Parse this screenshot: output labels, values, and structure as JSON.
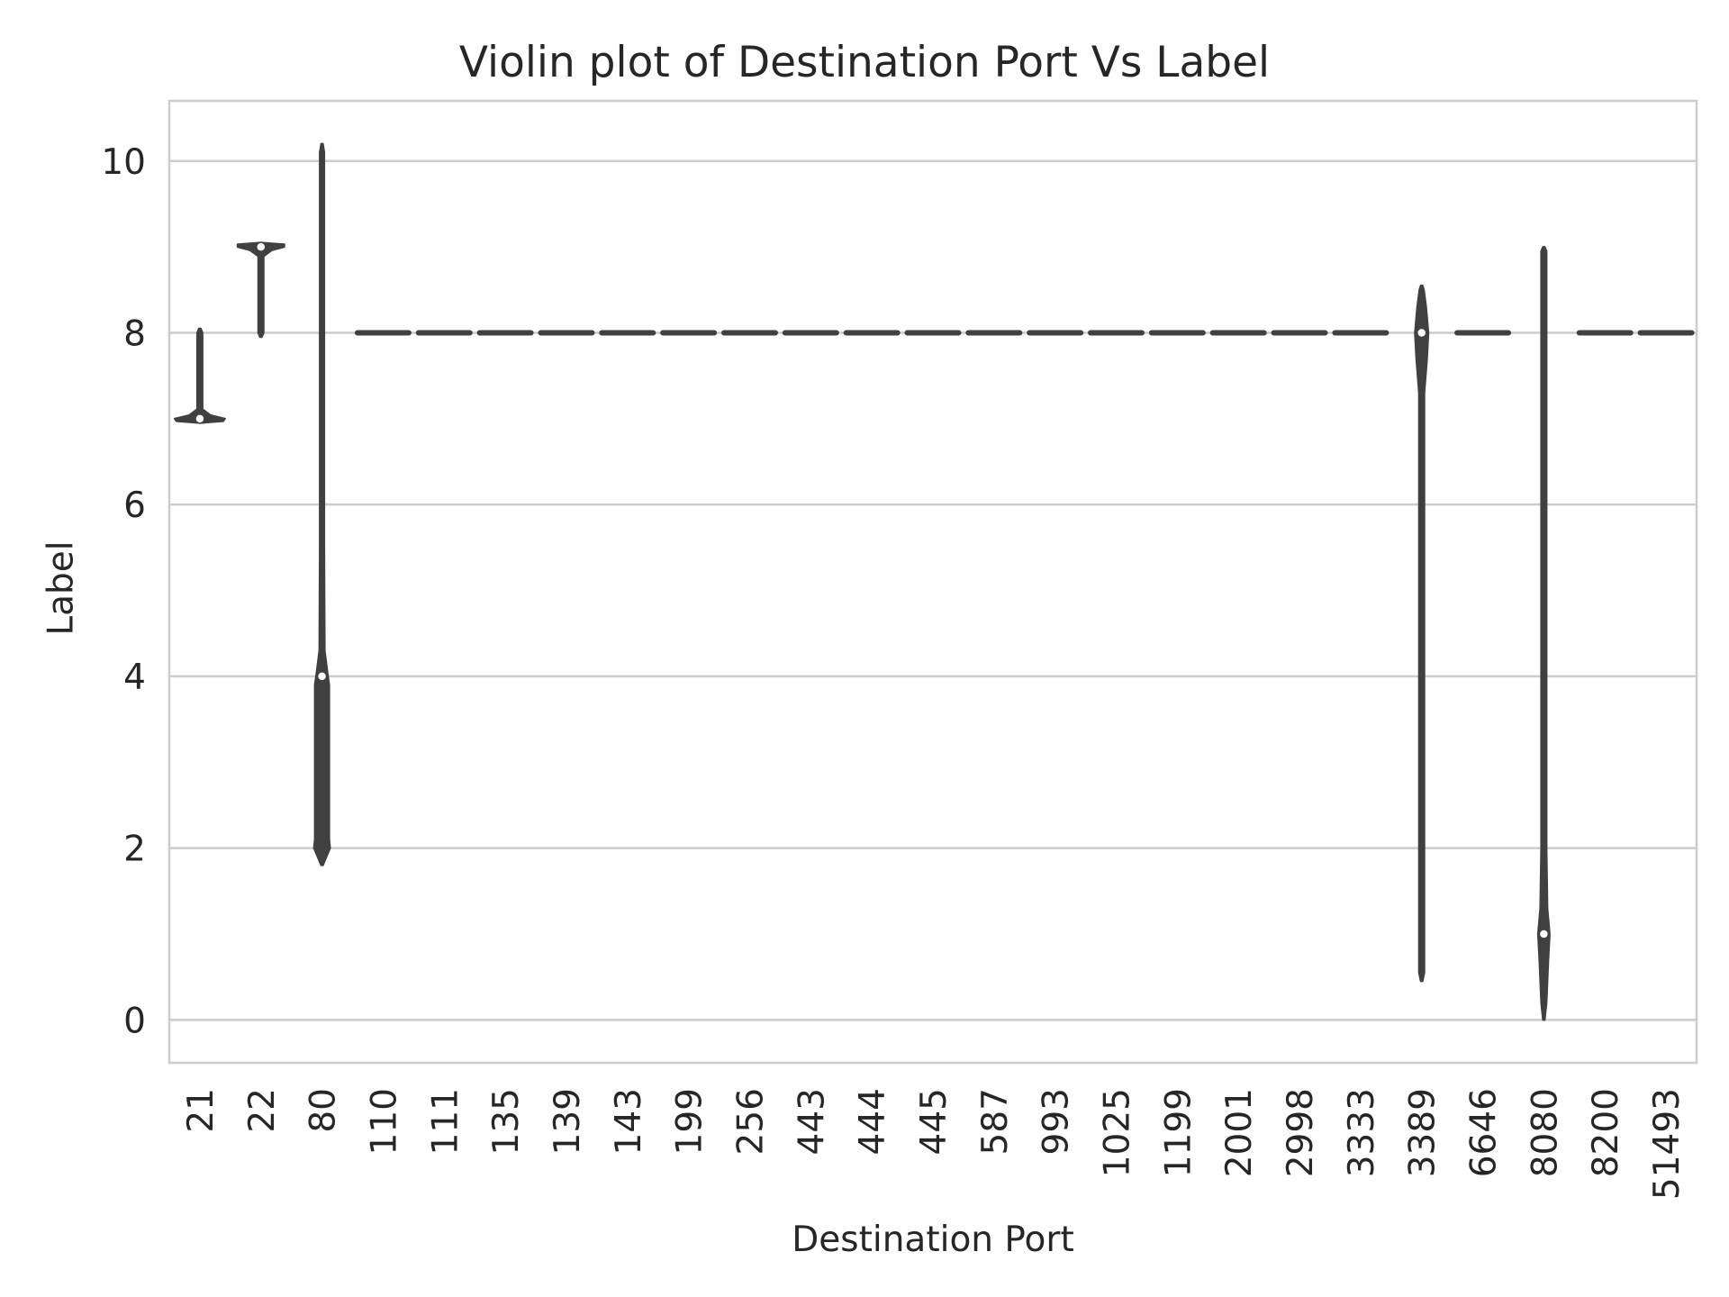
{
  "chart_data": {
    "type": "violin",
    "title": "Violin plot of Destination Port Vs Label",
    "xlabel": "Destination Port",
    "ylabel": "Label",
    "ylim": [
      -0.5,
      10.7
    ],
    "yticks": [
      0,
      2,
      4,
      6,
      8,
      10
    ],
    "grid": "y",
    "categories": [
      "21",
      "22",
      "80",
      "110",
      "111",
      "135",
      "139",
      "143",
      "199",
      "256",
      "443",
      "444",
      "445",
      "587",
      "993",
      "1025",
      "1199",
      "2001",
      "2998",
      "3333",
      "3389",
      "6646",
      "8080",
      "8200",
      "51493"
    ],
    "violins": [
      {
        "x": "21",
        "min": 6.95,
        "max": 8.05,
        "median": 7.0,
        "shape": "wide-at-min"
      },
      {
        "x": "22",
        "min": 7.95,
        "max": 9.05,
        "median": 9.0,
        "shape": "wide-at-max"
      },
      {
        "x": "80",
        "min": 1.8,
        "max": 10.2,
        "median": 4.0,
        "q1": 2.0,
        "q3": 4.0,
        "shape": "body-2-4"
      },
      {
        "x": "110",
        "value": 8
      },
      {
        "x": "111",
        "value": 8
      },
      {
        "x": "135",
        "value": 8
      },
      {
        "x": "139",
        "value": 8
      },
      {
        "x": "143",
        "value": 8
      },
      {
        "x": "199",
        "value": 8
      },
      {
        "x": "256",
        "value": 8
      },
      {
        "x": "443",
        "value": 8
      },
      {
        "x": "444",
        "value": 8
      },
      {
        "x": "445",
        "value": 8
      },
      {
        "x": "587",
        "value": 8
      },
      {
        "x": "993",
        "value": 8
      },
      {
        "x": "1025",
        "value": 8
      },
      {
        "x": "1199",
        "value": 8
      },
      {
        "x": "2001",
        "value": 8
      },
      {
        "x": "2998",
        "value": 8
      },
      {
        "x": "3333",
        "value": 8
      },
      {
        "x": "3389",
        "min": 0.45,
        "max": 8.55,
        "median": 8.0,
        "shape": "spindle-at-8"
      },
      {
        "x": "6646",
        "value": 8
      },
      {
        "x": "8080",
        "min": 0.0,
        "max": 9.0,
        "median": 1.0,
        "shape": "spindle-at-1"
      },
      {
        "x": "8200",
        "value": 8
      },
      {
        "x": "51493",
        "value": 8
      }
    ],
    "colors": {
      "violin": "#404040",
      "grid": "#cccccc",
      "frame": "#cccccc",
      "median": "#ffffff"
    }
  }
}
